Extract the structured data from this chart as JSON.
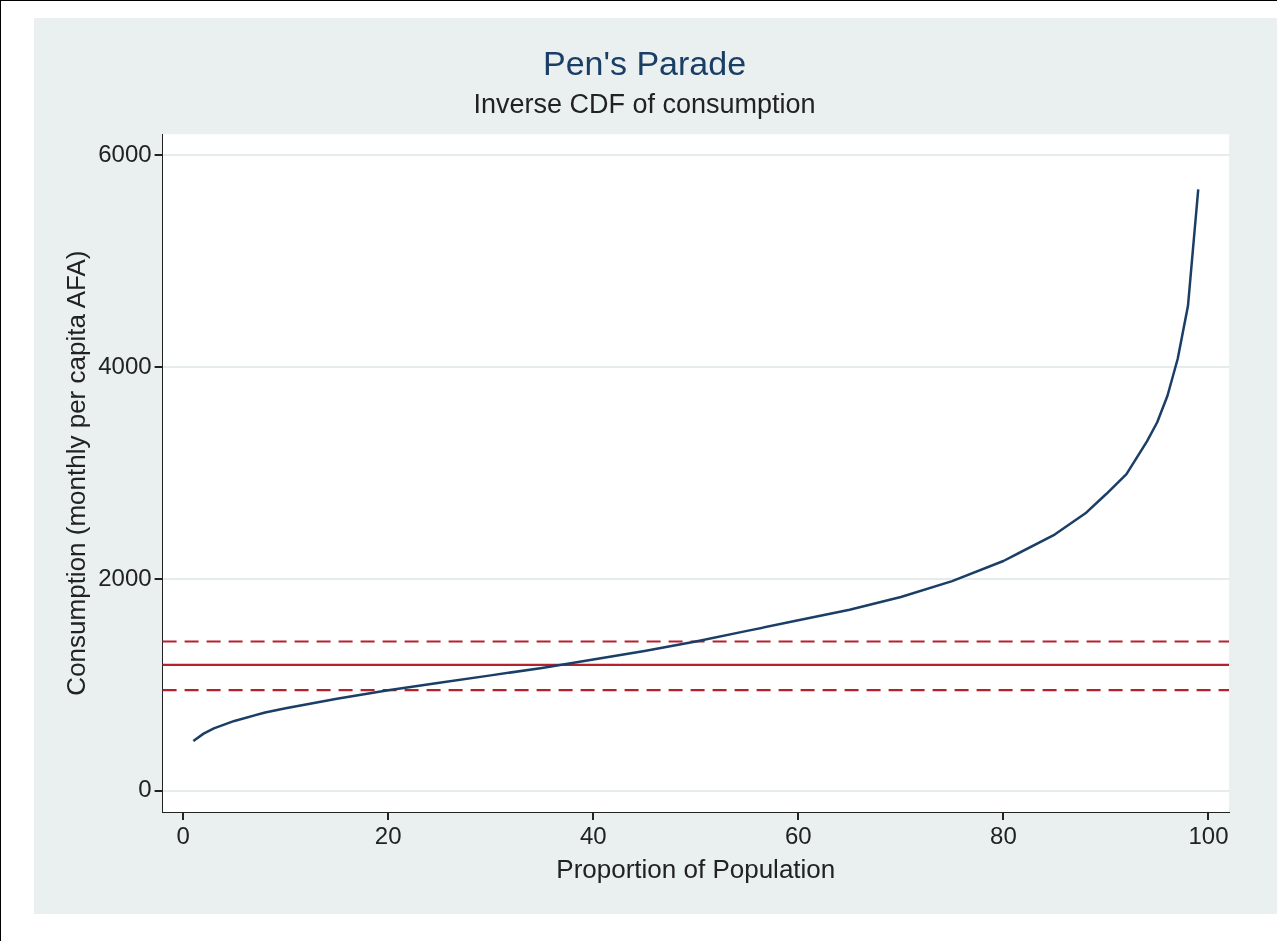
{
  "chart_data": {
    "type": "line",
    "title": "Pen's Parade",
    "subtitle": "Inverse CDF of consumption",
    "xlabel": "Proportion of Population",
    "ylabel": "Consumption (monthly per capita AFA)",
    "x": [
      1,
      2,
      3,
      5,
      8,
      10,
      15,
      20,
      25,
      30,
      35,
      40,
      45,
      50,
      55,
      60,
      65,
      70,
      75,
      80,
      85,
      88,
      90,
      92,
      94,
      95,
      96,
      97,
      98,
      99
    ],
    "series": [
      {
        "color": "#1a3e66",
        "values": [
          470,
          540,
          590,
          660,
          740,
          780,
          870,
          950,
          1020,
          1090,
          1160,
          1240,
          1320,
          1410,
          1510,
          1610,
          1710,
          1830,
          1980,
          2170,
          2420,
          2620,
          2800,
          2990,
          3300,
          3480,
          3730,
          4080,
          4580,
          5680
        ]
      }
    ],
    "xlim": [
      -2,
      102
    ],
    "xticks": [
      0,
      20,
      40,
      60,
      80,
      100
    ],
    "ylim": [
      -200,
      6200
    ],
    "yticks": [
      0,
      2000,
      4000,
      6000
    ],
    "ref_lines": [
      {
        "axis": "y",
        "value": 1190,
        "color": "#b5222f",
        "line_style": "solid"
      },
      {
        "axis": "y",
        "value": 1410,
        "color": "#b5222f",
        "line_style": "dashed"
      },
      {
        "axis": "y",
        "value": 950,
        "color": "#b5222f",
        "line_style": "dashed"
      }
    ],
    "grid": "y",
    "legend": false,
    "marker": "none",
    "line_style": "solid"
  }
}
